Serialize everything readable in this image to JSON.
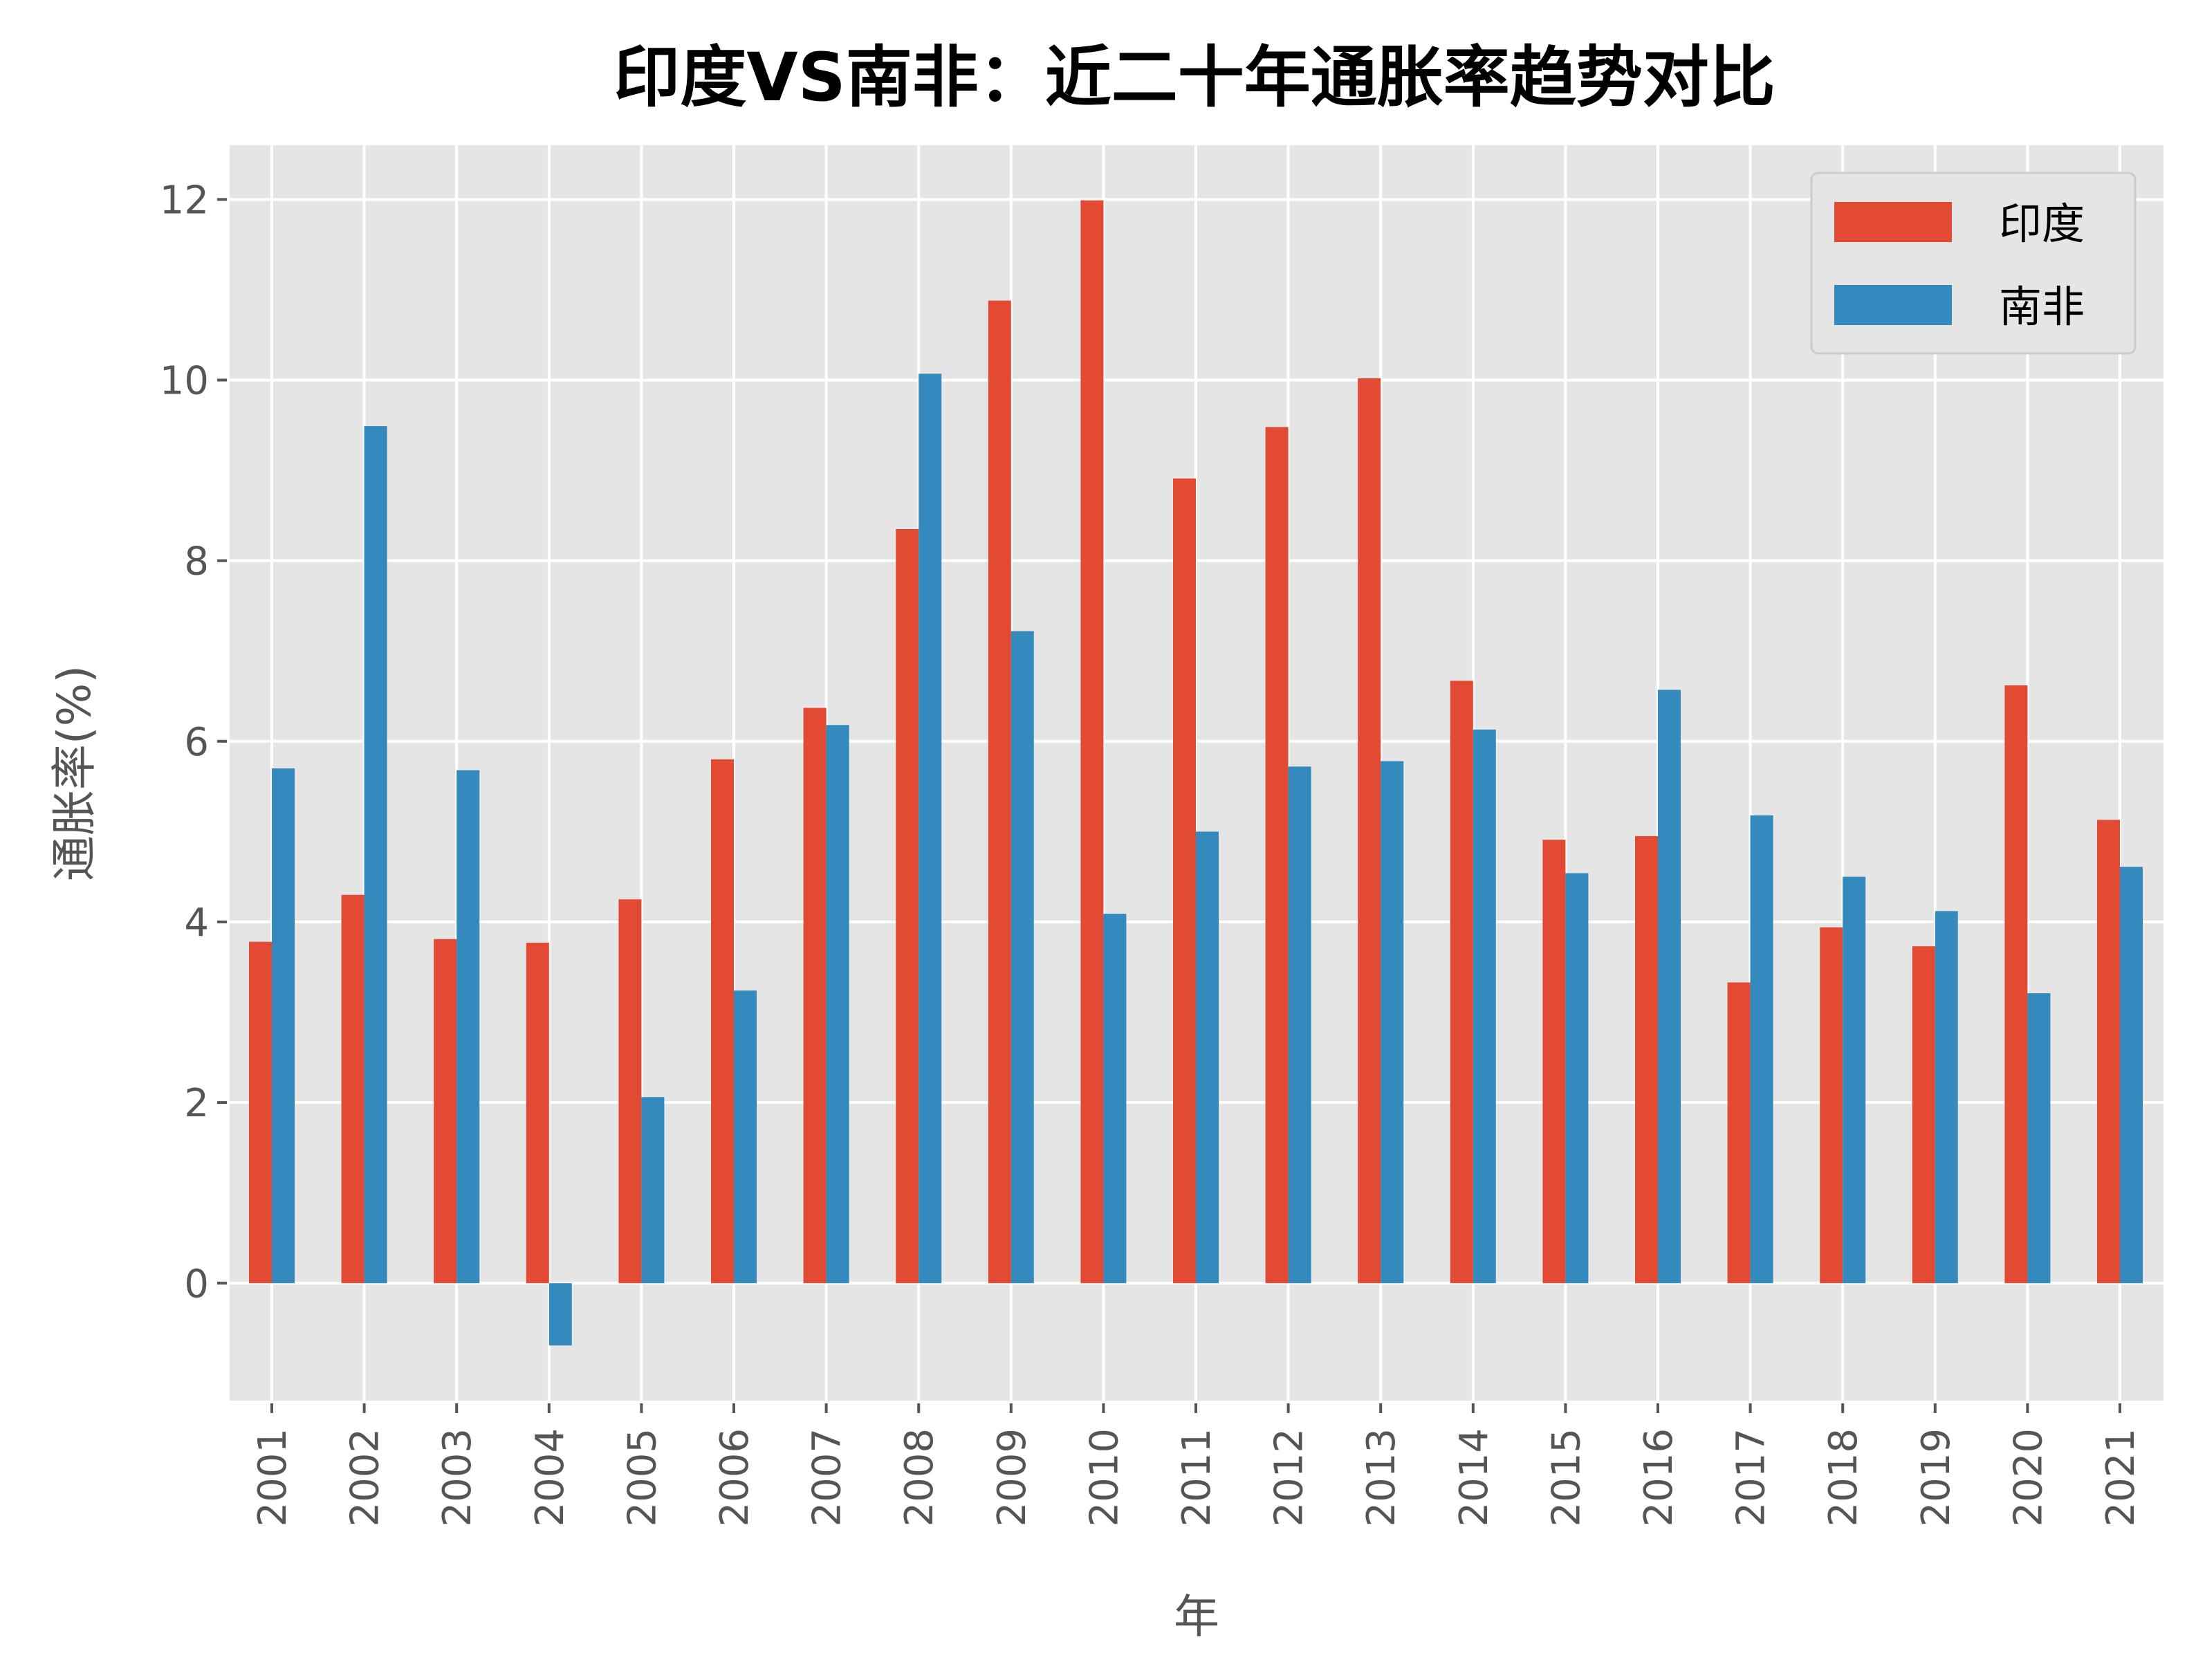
{
  "chart_data": {
    "type": "bar",
    "title": "印度VS南非：近二十年通胀率趋势对比",
    "xlabel": "年",
    "ylabel": "通胀率(%)",
    "categories": [
      "2001",
      "2002",
      "2003",
      "2004",
      "2005",
      "2006",
      "2007",
      "2008",
      "2009",
      "2010",
      "2011",
      "2012",
      "2013",
      "2014",
      "2015",
      "2016",
      "2017",
      "2018",
      "2019",
      "2020",
      "2021"
    ],
    "series": [
      {
        "name": "印度",
        "color": "#E24A33",
        "values": [
          3.78,
          4.3,
          3.81,
          3.77,
          4.25,
          5.8,
          6.37,
          8.35,
          10.88,
          11.99,
          8.91,
          9.48,
          10.02,
          6.67,
          4.91,
          4.95,
          3.33,
          3.94,
          3.73,
          6.62,
          5.13
        ]
      },
      {
        "name": "南非",
        "color": "#348ABD",
        "values": [
          5.7,
          9.49,
          5.68,
          -0.69,
          2.06,
          3.24,
          6.18,
          10.07,
          7.22,
          4.09,
          5.0,
          5.72,
          5.78,
          6.13,
          4.54,
          6.57,
          5.18,
          4.5,
          4.12,
          3.21,
          4.61
        ]
      }
    ],
    "yticks": [
      "0",
      "2",
      "4",
      "6",
      "8",
      "10",
      "12"
    ],
    "ylim": [
      -1.3,
      12.6
    ],
    "grid": true,
    "legend": "top-right",
    "background": "#E5E5E5"
  }
}
